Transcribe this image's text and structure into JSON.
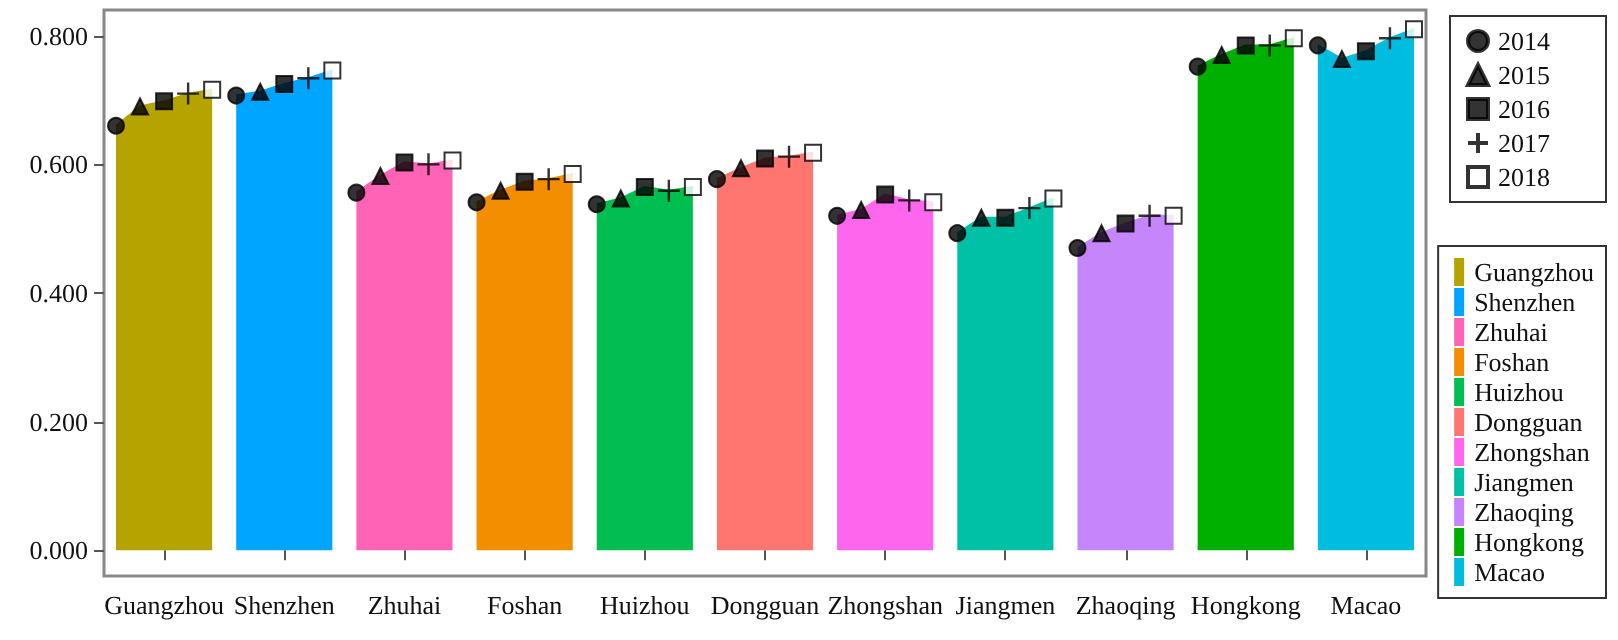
{
  "chart_data": {
    "type": "area",
    "categories": [
      null,
      null,
      "Guangzhou",
      null,
      null,
      null,
      null,
      "Shenzhen",
      null,
      null,
      null,
      null,
      "Zhuhai",
      null,
      null,
      null,
      null,
      "Foshan",
      null,
      null,
      null,
      null,
      "Huizhou",
      null,
      null,
      null,
      null,
      "Dongguan",
      null,
      null,
      null,
      null,
      "Zhongshan",
      null,
      null,
      null,
      null,
      "Jiangmen",
      null,
      null,
      null,
      null,
      "Zhaoqing",
      null,
      null,
      null,
      null,
      "Hongkong",
      null,
      null,
      null,
      null,
      "Macao",
      null,
      null
    ],
    "series": [
      {
        "name": "Guangzhou",
        "color": "#b5a300",
        "values": [
          0.66,
          0.69,
          0.698,
          0.71,
          0.716,
          null,
          null,
          null,
          null,
          null,
          null,
          null,
          null,
          null,
          null,
          null,
          null,
          null,
          null,
          null,
          null,
          null,
          null,
          null,
          null,
          null,
          null,
          null,
          null,
          null,
          null,
          null,
          null,
          null,
          null,
          null,
          null,
          null,
          null,
          null,
          null,
          null,
          null,
          null,
          null,
          null,
          null,
          null,
          null,
          null,
          null,
          null,
          null,
          null,
          null
        ]
      },
      {
        "name": "Shenzhen",
        "color": "#00a5ff",
        "values": [
          null,
          null,
          null,
          null,
          null,
          0.707,
          0.713,
          0.725,
          0.734,
          0.746,
          null,
          null,
          null,
          null,
          null,
          null,
          null,
          null,
          null,
          null,
          null,
          null,
          null,
          null,
          null,
          null,
          null,
          null,
          null,
          null,
          null,
          null,
          null,
          null,
          null,
          null,
          null,
          null,
          null,
          null,
          null,
          null,
          null,
          null,
          null,
          null,
          null,
          null,
          null,
          null,
          null,
          null,
          null,
          null,
          null
        ]
      },
      {
        "name": "Zhuhai",
        "color": "#ff63b6",
        "values": [
          null,
          null,
          null,
          null,
          null,
          null,
          null,
          null,
          null,
          null,
          0.556,
          0.582,
          0.603,
          0.6,
          0.606,
          null,
          null,
          null,
          null,
          null,
          null,
          null,
          null,
          null,
          null,
          null,
          null,
          null,
          null,
          null,
          null,
          null,
          null,
          null,
          null,
          null,
          null,
          null,
          null,
          null,
          null,
          null,
          null,
          null,
          null,
          null,
          null,
          null,
          null,
          null,
          null,
          null,
          null,
          null,
          null
        ]
      },
      {
        "name": "Foshan",
        "color": "#f28e00",
        "values": [
          null,
          null,
          null,
          null,
          null,
          null,
          null,
          null,
          null,
          null,
          null,
          null,
          null,
          null,
          null,
          0.541,
          0.559,
          0.573,
          0.577,
          0.585,
          null,
          null,
          null,
          null,
          null,
          null,
          null,
          null,
          null,
          null,
          null,
          null,
          null,
          null,
          null,
          null,
          null,
          null,
          null,
          null,
          null,
          null,
          null,
          null,
          null,
          null,
          null,
          null,
          null,
          null,
          null,
          null,
          null,
          null,
          null
        ]
      },
      {
        "name": "Huizhou",
        "color": "#00bf50",
        "values": [
          null,
          null,
          null,
          null,
          null,
          null,
          null,
          null,
          null,
          null,
          null,
          null,
          null,
          null,
          null,
          null,
          null,
          null,
          null,
          null,
          0.538,
          0.547,
          0.565,
          0.559,
          0.565,
          null,
          null,
          null,
          null,
          null,
          null,
          null,
          null,
          null,
          null,
          null,
          null,
          null,
          null,
          null,
          null,
          null,
          null,
          null,
          null,
          null,
          null,
          null,
          null,
          null,
          null,
          null,
          null,
          null,
          null
        ]
      },
      {
        "name": "Dongguan",
        "color": "#ff7670",
        "values": [
          null,
          null,
          null,
          null,
          null,
          null,
          null,
          null,
          null,
          null,
          null,
          null,
          null,
          null,
          null,
          null,
          null,
          null,
          null,
          null,
          null,
          null,
          null,
          null,
          null,
          0.577,
          0.594,
          0.609,
          0.612,
          0.618,
          null,
          null,
          null,
          null,
          null,
          null,
          null,
          null,
          null,
          null,
          null,
          null,
          null,
          null,
          null,
          null,
          null,
          null,
          null,
          null,
          null,
          null,
          null,
          null,
          null
        ]
      },
      {
        "name": "Zhongshan",
        "color": "#ff66ee",
        "values": [
          null,
          null,
          null,
          null,
          null,
          null,
          null,
          null,
          null,
          null,
          null,
          null,
          null,
          null,
          null,
          null,
          null,
          null,
          null,
          null,
          null,
          null,
          null,
          null,
          null,
          null,
          null,
          null,
          null,
          null,
          0.52,
          0.529,
          0.553,
          0.544,
          0.541,
          null,
          null,
          null,
          null,
          null,
          null,
          null,
          null,
          null,
          null,
          null,
          null,
          null,
          null,
          null,
          null,
          null,
          null,
          null,
          null
        ]
      },
      {
        "name": "Jiangmen",
        "color": "#00c0a5",
        "values": [
          null,
          null,
          null,
          null,
          null,
          null,
          null,
          null,
          null,
          null,
          null,
          null,
          null,
          null,
          null,
          null,
          null,
          null,
          null,
          null,
          null,
          null,
          null,
          null,
          null,
          null,
          null,
          null,
          null,
          null,
          null,
          null,
          null,
          null,
          null,
          0.493,
          0.517,
          0.517,
          0.532,
          0.547,
          null,
          null,
          null,
          null,
          null,
          null,
          null,
          null,
          null,
          null,
          null,
          null,
          null,
          null,
          null
        ]
      },
      {
        "name": "Zhaoqing",
        "color": "#c586fc",
        "values": [
          null,
          null,
          null,
          null,
          null,
          null,
          null,
          null,
          null,
          null,
          null,
          null,
          null,
          null,
          null,
          null,
          null,
          null,
          null,
          null,
          null,
          null,
          null,
          null,
          null,
          null,
          null,
          null,
          null,
          null,
          null,
          null,
          null,
          null,
          null,
          null,
          null,
          null,
          null,
          null,
          0.47,
          0.493,
          0.508,
          0.52,
          0.52,
          null,
          null,
          null,
          null,
          null,
          null,
          null,
          null,
          null,
          null
        ]
      },
      {
        "name": "Hongkong",
        "color": "#00b000",
        "values": [
          null,
          null,
          null,
          null,
          null,
          null,
          null,
          null,
          null,
          null,
          null,
          null,
          null,
          null,
          null,
          null,
          null,
          null,
          null,
          null,
          null,
          null,
          null,
          null,
          null,
          null,
          null,
          null,
          null,
          null,
          null,
          null,
          null,
          null,
          null,
          null,
          null,
          null,
          null,
          null,
          null,
          null,
          null,
          null,
          null,
          0.752,
          0.77,
          0.785,
          0.785,
          0.796,
          null,
          null,
          null,
          null,
          null
        ]
      },
      {
        "name": "Macao",
        "color": "#00bde0",
        "values": [
          null,
          null,
          null,
          null,
          null,
          null,
          null,
          null,
          null,
          null,
          null,
          null,
          null,
          null,
          null,
          null,
          null,
          null,
          null,
          null,
          null,
          null,
          null,
          null,
          null,
          null,
          null,
          null,
          null,
          null,
          null,
          null,
          null,
          null,
          null,
          null,
          null,
          null,
          null,
          null,
          null,
          null,
          null,
          null,
          null,
          null,
          null,
          null,
          null,
          null,
          0.785,
          0.764,
          0.776,
          0.796,
          0.81
        ]
      },
      {
        "name": "2014",
        "type": "scatter",
        "marker": "circle",
        "color": "#000000",
        "values": [
          0.66,
          null,
          null,
          null,
          null,
          0.707,
          null,
          null,
          null,
          null,
          0.556,
          null,
          null,
          null,
          null,
          0.541,
          null,
          null,
          null,
          null,
          0.538,
          null,
          null,
          null,
          null,
          0.577,
          null,
          null,
          null,
          null,
          0.52,
          null,
          null,
          null,
          null,
          0.493,
          null,
          null,
          null,
          null,
          0.47,
          null,
          null,
          null,
          null,
          0.752,
          null,
          null,
          null,
          null,
          0.785,
          null,
          null,
          null,
          null
        ]
      },
      {
        "name": "2015",
        "type": "scatter",
        "marker": "triangle",
        "color": "#000000",
        "values": [
          null,
          0.69,
          null,
          null,
          null,
          null,
          0.713,
          null,
          null,
          null,
          null,
          0.582,
          null,
          null,
          null,
          null,
          0.559,
          null,
          null,
          null,
          null,
          0.547,
          null,
          null,
          null,
          null,
          0.594,
          null,
          null,
          null,
          null,
          0.529,
          null,
          null,
          null,
          null,
          0.517,
          null,
          null,
          null,
          null,
          0.493,
          null,
          null,
          null,
          null,
          0.77,
          null,
          null,
          null,
          null,
          0.764,
          null,
          null,
          null
        ]
      },
      {
        "name": "2016",
        "type": "scatter",
        "marker": "square",
        "color": "#000000",
        "values": [
          null,
          null,
          0.698,
          null,
          null,
          null,
          null,
          0.725,
          null,
          null,
          null,
          null,
          0.603,
          null,
          null,
          null,
          null,
          0.573,
          null,
          null,
          null,
          null,
          0.565,
          null,
          null,
          null,
          null,
          0.609,
          null,
          null,
          null,
          null,
          0.553,
          null,
          null,
          null,
          null,
          0.517,
          null,
          null,
          null,
          null,
          0.508,
          null,
          null,
          null,
          null,
          0.785,
          null,
          null,
          null,
          null,
          0.776,
          null,
          null
        ]
      },
      {
        "name": "2017",
        "type": "scatter",
        "marker": "cross",
        "color": "#000000",
        "values": [
          null,
          null,
          null,
          0.71,
          null,
          null,
          null,
          null,
          0.734,
          null,
          null,
          null,
          null,
          0.6,
          null,
          null,
          null,
          null,
          0.577,
          null,
          null,
          null,
          null,
          0.559,
          null,
          null,
          null,
          null,
          0.612,
          null,
          null,
          null,
          null,
          0.544,
          null,
          null,
          null,
          null,
          0.532,
          null,
          null,
          null,
          null,
          0.52,
          null,
          null,
          null,
          null,
          0.785,
          null,
          null,
          null,
          null,
          0.796,
          null
        ]
      },
      {
        "name": "2018",
        "type": "scatter",
        "marker": "square",
        "color": "#ffffff",
        "values": [
          null,
          null,
          null,
          null,
          0.716,
          null,
          null,
          null,
          null,
          0.746,
          null,
          null,
          null,
          null,
          0.606,
          null,
          null,
          null,
          null,
          0.585,
          null,
          null,
          null,
          null,
          0.565,
          null,
          null,
          null,
          null,
          0.618,
          null,
          null,
          null,
          null,
          0.541,
          null,
          null,
          null,
          null,
          0.547,
          null,
          null,
          null,
          null,
          0.52,
          null,
          null,
          null,
          null,
          0.796,
          null,
          null,
          null,
          null,
          0.81
        ]
      }
    ],
    "ylim": [
      -0.04,
      0.84
    ],
    "yticks": [
      {
        "value": 0,
        "label": "0.000"
      },
      {
        "value": 0.2,
        "label": "0.200"
      },
      {
        "value": 0.4,
        "label": "0.400"
      },
      {
        "value": 0.6,
        "label": "0.600"
      },
      {
        "value": 0.8,
        "label": "0.800"
      }
    ],
    "grid": false,
    "legend": "right"
  }
}
